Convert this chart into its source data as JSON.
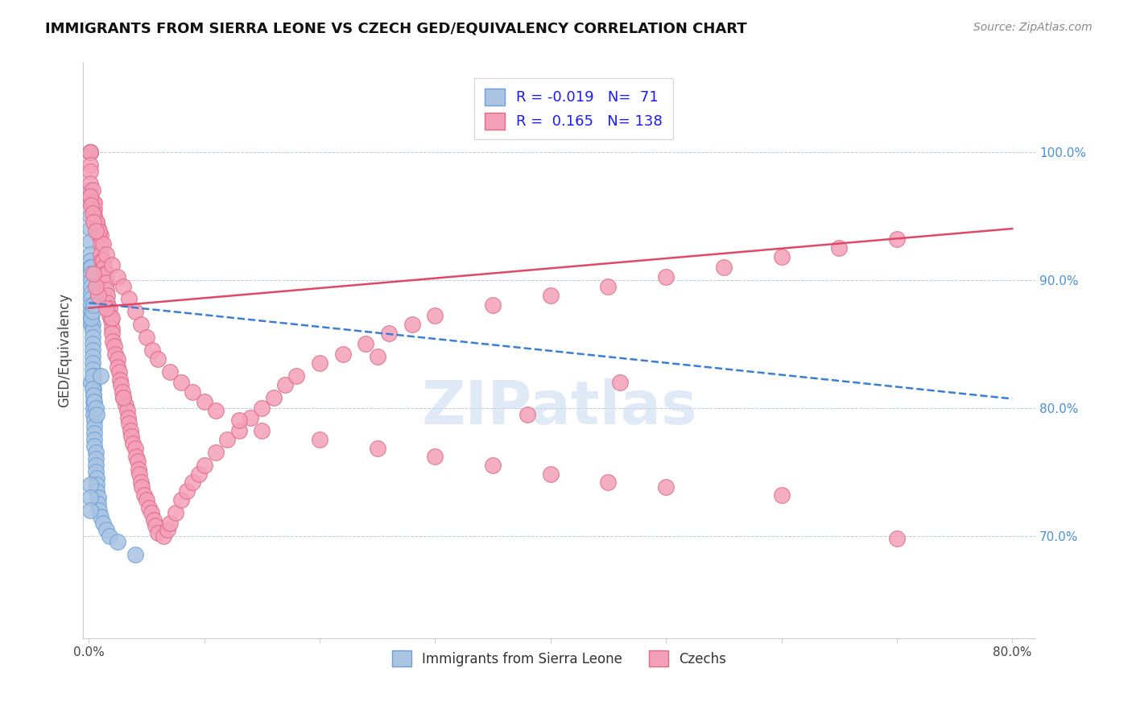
{
  "title": "IMMIGRANTS FROM SIERRA LEONE VS CZECH GED/EQUIVALENCY CORRELATION CHART",
  "source": "Source: ZipAtlas.com",
  "ylabel": "GED/Equivalency",
  "legend_blue_R": "-0.019",
  "legend_blue_N": "71",
  "legend_pink_R": "0.165",
  "legend_pink_N": "138",
  "blue_color": "#aac4e2",
  "pink_color": "#f4a0b8",
  "blue_edge": "#6a9fd8",
  "pink_edge": "#e06888",
  "trend_blue_color": "#3a7fd4",
  "trend_pink_color": "#e04868",
  "watermark_color": "#c8daf2",
  "blue_scatter_x": [
    0.001,
    0.001,
    0.001,
    0.001,
    0.001,
    0.001,
    0.001,
    0.001,
    0.001,
    0.001,
    0.002,
    0.002,
    0.002,
    0.002,
    0.002,
    0.002,
    0.002,
    0.002,
    0.002,
    0.002,
    0.003,
    0.003,
    0.003,
    0.003,
    0.003,
    0.003,
    0.003,
    0.003,
    0.004,
    0.004,
    0.004,
    0.004,
    0.004,
    0.004,
    0.004,
    0.005,
    0.005,
    0.005,
    0.005,
    0.005,
    0.006,
    0.006,
    0.006,
    0.006,
    0.007,
    0.007,
    0.007,
    0.008,
    0.008,
    0.009,
    0.01,
    0.012,
    0.015,
    0.018,
    0.025,
    0.001,
    0.001,
    0.001,
    0.002,
    0.003,
    0.003,
    0.004,
    0.005,
    0.006,
    0.007,
    0.04,
    0.01,
    0.002,
    0.003,
    0.004
  ],
  "blue_scatter_y": [
    1.0,
    1.0,
    0.97,
    0.96,
    0.95,
    0.94,
    0.93,
    0.92,
    0.915,
    0.91,
    0.91,
    0.905,
    0.9,
    0.895,
    0.89,
    0.885,
    0.88,
    0.875,
    0.87,
    0.865,
    0.865,
    0.86,
    0.855,
    0.85,
    0.845,
    0.84,
    0.835,
    0.83,
    0.825,
    0.82,
    0.815,
    0.81,
    0.805,
    0.8,
    0.795,
    0.79,
    0.785,
    0.78,
    0.775,
    0.77,
    0.765,
    0.76,
    0.755,
    0.75,
    0.745,
    0.74,
    0.735,
    0.73,
    0.725,
    0.72,
    0.715,
    0.71,
    0.705,
    0.7,
    0.695,
    0.74,
    0.73,
    0.72,
    0.82,
    0.825,
    0.815,
    0.81,
    0.805,
    0.8,
    0.795,
    0.685,
    0.825,
    0.87,
    0.875,
    0.88
  ],
  "pink_scatter_x": [
    0.001,
    0.001,
    0.001,
    0.001,
    0.001,
    0.001,
    0.003,
    0.003,
    0.004,
    0.004,
    0.005,
    0.005,
    0.005,
    0.007,
    0.008,
    0.009,
    0.01,
    0.01,
    0.01,
    0.011,
    0.012,
    0.013,
    0.014,
    0.015,
    0.015,
    0.015,
    0.016,
    0.016,
    0.018,
    0.018,
    0.019,
    0.02,
    0.02,
    0.021,
    0.022,
    0.023,
    0.025,
    0.025,
    0.026,
    0.027,
    0.028,
    0.029,
    0.03,
    0.032,
    0.033,
    0.034,
    0.035,
    0.036,
    0.037,
    0.038,
    0.04,
    0.041,
    0.042,
    0.043,
    0.044,
    0.045,
    0.046,
    0.048,
    0.05,
    0.052,
    0.054,
    0.056,
    0.058,
    0.06,
    0.065,
    0.068,
    0.07,
    0.075,
    0.08,
    0.085,
    0.09,
    0.095,
    0.1,
    0.11,
    0.12,
    0.13,
    0.14,
    0.15,
    0.16,
    0.17,
    0.18,
    0.2,
    0.22,
    0.24,
    0.26,
    0.28,
    0.3,
    0.35,
    0.4,
    0.45,
    0.5,
    0.55,
    0.6,
    0.65,
    0.7,
    0.005,
    0.007,
    0.009,
    0.012,
    0.015,
    0.02,
    0.025,
    0.03,
    0.035,
    0.04,
    0.045,
    0.05,
    0.055,
    0.06,
    0.07,
    0.08,
    0.09,
    0.1,
    0.11,
    0.13,
    0.15,
    0.2,
    0.25,
    0.3,
    0.35,
    0.4,
    0.45,
    0.5,
    0.6,
    0.7,
    0.001,
    0.002,
    0.003,
    0.004,
    0.006,
    0.25,
    0.38,
    0.46,
    0.03,
    0.02,
    0.015,
    0.008,
    0.006,
    0.004
  ],
  "pink_scatter_y": [
    1.0,
    1.0,
    0.99,
    0.985,
    0.975,
    0.965,
    0.97,
    0.96,
    0.96,
    0.955,
    0.955,
    0.95,
    0.945,
    0.945,
    0.94,
    0.935,
    0.935,
    0.928,
    0.92,
    0.915,
    0.915,
    0.91,
    0.905,
    0.905,
    0.898,
    0.892,
    0.888,
    0.882,
    0.878,
    0.872,
    0.868,
    0.862,
    0.858,
    0.852,
    0.848,
    0.842,
    0.838,
    0.832,
    0.828,
    0.822,
    0.818,
    0.812,
    0.808,
    0.802,
    0.798,
    0.792,
    0.788,
    0.782,
    0.778,
    0.772,
    0.768,
    0.762,
    0.758,
    0.752,
    0.748,
    0.742,
    0.738,
    0.732,
    0.728,
    0.722,
    0.718,
    0.712,
    0.708,
    0.702,
    0.7,
    0.705,
    0.71,
    0.718,
    0.728,
    0.735,
    0.742,
    0.748,
    0.755,
    0.765,
    0.775,
    0.782,
    0.792,
    0.8,
    0.808,
    0.818,
    0.825,
    0.835,
    0.842,
    0.85,
    0.858,
    0.865,
    0.872,
    0.88,
    0.888,
    0.895,
    0.902,
    0.91,
    0.918,
    0.925,
    0.932,
    0.96,
    0.945,
    0.938,
    0.928,
    0.92,
    0.912,
    0.902,
    0.895,
    0.885,
    0.875,
    0.865,
    0.855,
    0.845,
    0.838,
    0.828,
    0.82,
    0.812,
    0.805,
    0.798,
    0.79,
    0.782,
    0.775,
    0.768,
    0.762,
    0.755,
    0.748,
    0.742,
    0.738,
    0.732,
    0.698,
    0.965,
    0.958,
    0.952,
    0.945,
    0.938,
    0.84,
    0.795,
    0.82,
    0.808,
    0.87,
    0.878,
    0.888,
    0.895,
    0.905
  ],
  "blue_trend_x": [
    0.0,
    0.8
  ],
  "blue_trend_y": [
    0.882,
    0.807
  ],
  "pink_trend_x": [
    0.0,
    0.8
  ],
  "pink_trend_y": [
    0.878,
    0.94
  ],
  "xlim": [
    -0.005,
    0.82
  ],
  "ylim": [
    0.62,
    1.07
  ]
}
